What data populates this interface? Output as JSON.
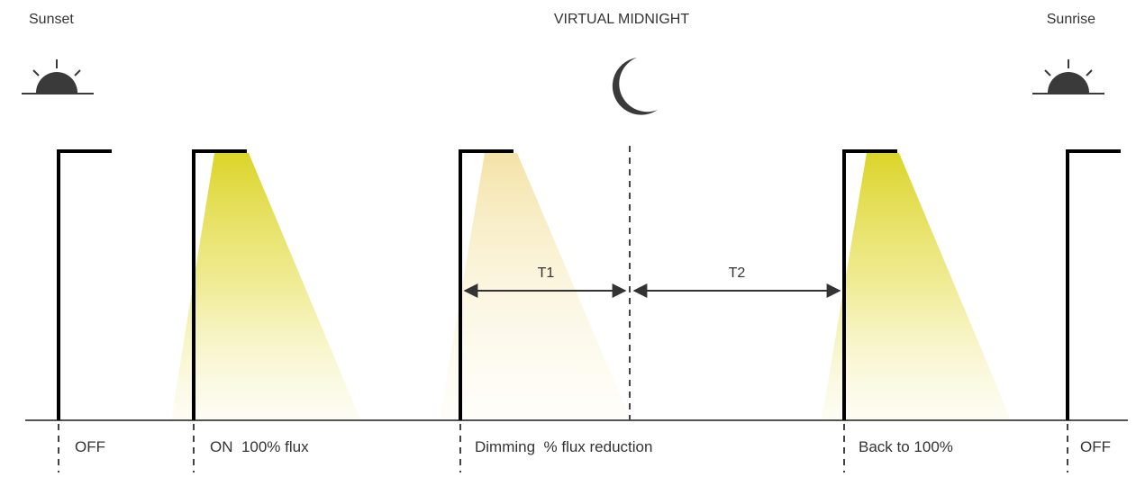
{
  "header": {
    "sunset": "Sunset",
    "midnight": "VIRTUAL MIDNIGHT",
    "sunrise": "Sunrise"
  },
  "icons": {
    "sunset": "sunset-icon",
    "moon": "crescent-moon-icon",
    "sunrise": "sunrise-icon"
  },
  "intervals": {
    "t1": "T1",
    "t2": "T2"
  },
  "stages": [
    {
      "label": "OFF",
      "light": "off"
    },
    {
      "label": "ON  100% flux",
      "light": "full"
    },
    {
      "label": "Dimming  % flux reduction",
      "light": "dimmed"
    },
    {
      "label": "Back to 100%",
      "light": "full"
    },
    {
      "label": "OFF",
      "light": "off"
    }
  ],
  "colors": {
    "pole": "#000000",
    "ground": "#555555",
    "icon": "#3a3a3a",
    "light_full": "#d9d21e",
    "light_dimmed": "#f3e29a",
    "arrow": "#333333"
  }
}
